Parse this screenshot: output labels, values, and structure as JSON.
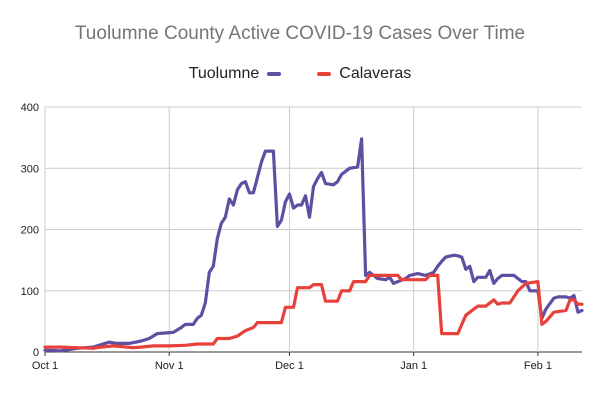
{
  "chart_data": {
    "type": "line",
    "title": "Tuolumne County Active COVID-19 Cases Over Time",
    "xlabel": "",
    "ylabel": "",
    "xlim": [
      "2020-10-01",
      "2021-02-12"
    ],
    "ylim": [
      0,
      400
    ],
    "grid": true,
    "legend_position": "top",
    "y_ticks": [
      0,
      100,
      200,
      300,
      400
    ],
    "x_ticks": [
      {
        "date": "2020-10-01",
        "label": "Oct 1"
      },
      {
        "date": "2020-11-01",
        "label": "Nov 1"
      },
      {
        "date": "2020-12-01",
        "label": "Dec 1"
      },
      {
        "date": "2021-01-01",
        "label": "Jan 1"
      },
      {
        "date": "2021-02-01",
        "label": "Feb 1"
      }
    ],
    "series": [
      {
        "name": "Tuolumne",
        "color": "#5E4FA2",
        "points": [
          [
            "2020-10-01",
            3
          ],
          [
            "2020-10-05",
            2
          ],
          [
            "2020-10-09",
            6
          ],
          [
            "2020-10-13",
            8
          ],
          [
            "2020-10-15",
            12
          ],
          [
            "2020-10-17",
            16
          ],
          [
            "2020-10-19",
            14
          ],
          [
            "2020-10-22",
            14
          ],
          [
            "2020-10-25",
            18
          ],
          [
            "2020-10-27",
            22
          ],
          [
            "2020-10-29",
            30
          ],
          [
            "2020-11-02",
            32
          ],
          [
            "2020-11-04",
            40
          ],
          [
            "2020-11-05",
            45
          ],
          [
            "2020-11-07",
            45
          ],
          [
            "2020-11-08",
            55
          ],
          [
            "2020-11-09",
            60
          ],
          [
            "2020-11-10",
            80
          ],
          [
            "2020-11-11",
            130
          ],
          [
            "2020-11-12",
            140
          ],
          [
            "2020-11-13",
            185
          ],
          [
            "2020-11-14",
            210
          ],
          [
            "2020-11-15",
            220
          ],
          [
            "2020-11-16",
            250
          ],
          [
            "2020-11-17",
            240
          ],
          [
            "2020-11-18",
            265
          ],
          [
            "2020-11-19",
            275
          ],
          [
            "2020-11-20",
            278
          ],
          [
            "2020-11-21",
            260
          ],
          [
            "2020-11-22",
            260
          ],
          [
            "2020-11-24",
            310
          ],
          [
            "2020-11-25",
            328
          ],
          [
            "2020-11-27",
            328
          ],
          [
            "2020-11-28",
            205
          ],
          [
            "2020-11-29",
            215
          ],
          [
            "2020-11-30",
            245
          ],
          [
            "2020-12-01",
            258
          ],
          [
            "2020-12-02",
            235
          ],
          [
            "2020-12-03",
            240
          ],
          [
            "2020-12-04",
            240
          ],
          [
            "2020-12-05",
            255
          ],
          [
            "2020-12-06",
            220
          ],
          [
            "2020-12-07",
            270
          ],
          [
            "2020-12-08",
            283
          ],
          [
            "2020-12-09",
            293
          ],
          [
            "2020-12-10",
            275
          ],
          [
            "2020-12-12",
            273
          ],
          [
            "2020-12-13",
            278
          ],
          [
            "2020-12-14",
            290
          ],
          [
            "2020-12-15",
            295
          ],
          [
            "2020-12-16",
            300
          ],
          [
            "2020-12-18",
            302
          ],
          [
            "2020-12-19",
            348
          ],
          [
            "2020-12-20",
            125
          ],
          [
            "2020-12-21",
            130
          ],
          [
            "2020-12-23",
            120
          ],
          [
            "2020-12-25",
            118
          ],
          [
            "2020-12-26",
            122
          ],
          [
            "2020-12-27",
            112
          ],
          [
            "2020-12-28",
            115
          ],
          [
            "2020-12-30",
            120
          ],
          [
            "2020-12-31",
            125
          ],
          [
            "2021-01-02",
            128
          ],
          [
            "2021-01-04",
            125
          ],
          [
            "2021-01-06",
            130
          ],
          [
            "2021-01-07",
            140
          ],
          [
            "2021-01-08",
            148
          ],
          [
            "2021-01-09",
            155
          ],
          [
            "2021-01-11",
            158
          ],
          [
            "2021-01-12",
            157
          ],
          [
            "2021-01-13",
            155
          ],
          [
            "2021-01-14",
            135
          ],
          [
            "2021-01-15",
            140
          ],
          [
            "2021-01-16",
            115
          ],
          [
            "2021-01-17",
            122
          ],
          [
            "2021-01-19",
            122
          ],
          [
            "2021-01-20",
            133
          ],
          [
            "2021-01-21",
            112
          ],
          [
            "2021-01-22",
            120
          ],
          [
            "2021-01-23",
            125
          ],
          [
            "2021-01-26",
            125
          ],
          [
            "2021-01-27",
            120
          ],
          [
            "2021-01-28",
            115
          ],
          [
            "2021-01-29",
            115
          ],
          [
            "2021-01-30",
            100
          ],
          [
            "2021-02-01",
            100
          ],
          [
            "2021-02-02",
            55
          ],
          [
            "2021-02-03",
            70
          ],
          [
            "2021-02-05",
            88
          ],
          [
            "2021-02-06",
            90
          ],
          [
            "2021-02-08",
            90
          ],
          [
            "2021-02-09",
            88
          ],
          [
            "2021-02-10",
            92
          ],
          [
            "2021-02-11",
            65
          ],
          [
            "2021-02-12",
            68
          ]
        ]
      },
      {
        "name": "Calaveras",
        "color": "#E8413B",
        "points": [
          [
            "2020-10-01",
            8
          ],
          [
            "2020-10-05",
            8
          ],
          [
            "2020-10-09",
            7
          ],
          [
            "2020-10-13",
            6
          ],
          [
            "2020-10-15",
            8
          ],
          [
            "2020-10-18",
            10
          ],
          [
            "2020-10-20",
            9
          ],
          [
            "2020-10-23",
            7
          ],
          [
            "2020-10-25",
            8
          ],
          [
            "2020-10-28",
            10
          ],
          [
            "2020-11-01",
            10
          ],
          [
            "2020-11-05",
            11
          ],
          [
            "2020-11-08",
            13
          ],
          [
            "2020-11-12",
            13
          ],
          [
            "2020-11-13",
            22
          ],
          [
            "2020-11-16",
            22
          ],
          [
            "2020-11-18",
            26
          ],
          [
            "2020-11-20",
            35
          ],
          [
            "2020-11-22",
            40
          ],
          [
            "2020-11-23",
            48
          ],
          [
            "2020-11-29",
            48
          ],
          [
            "2020-11-30",
            73
          ],
          [
            "2020-12-02",
            73
          ],
          [
            "2020-12-03",
            105
          ],
          [
            "2020-12-06",
            105
          ],
          [
            "2020-12-07",
            110
          ],
          [
            "2020-12-09",
            110
          ],
          [
            "2020-12-10",
            83
          ],
          [
            "2020-12-13",
            83
          ],
          [
            "2020-12-14",
            100
          ],
          [
            "2020-12-16",
            100
          ],
          [
            "2020-12-17",
            115
          ],
          [
            "2020-12-20",
            115
          ],
          [
            "2020-12-21",
            125
          ],
          [
            "2020-12-28",
            125
          ],
          [
            "2020-12-29",
            118
          ],
          [
            "2021-01-04",
            118
          ],
          [
            "2021-01-05",
            125
          ],
          [
            "2021-01-07",
            125
          ],
          [
            "2021-01-08",
            30
          ],
          [
            "2021-01-12",
            30
          ],
          [
            "2021-01-13",
            45
          ],
          [
            "2021-01-14",
            60
          ],
          [
            "2021-01-16",
            70
          ],
          [
            "2021-01-17",
            75
          ],
          [
            "2021-01-19",
            75
          ],
          [
            "2021-01-21",
            85
          ],
          [
            "2021-01-22",
            78
          ],
          [
            "2021-01-23",
            80
          ],
          [
            "2021-01-25",
            80
          ],
          [
            "2021-01-27",
            100
          ],
          [
            "2021-01-29",
            112
          ],
          [
            "2021-02-01",
            115
          ],
          [
            "2021-02-02",
            45
          ],
          [
            "2021-02-03",
            50
          ],
          [
            "2021-02-05",
            65
          ],
          [
            "2021-02-08",
            68
          ],
          [
            "2021-02-09",
            85
          ],
          [
            "2021-02-10",
            85
          ],
          [
            "2021-02-11",
            78
          ],
          [
            "2021-02-12",
            78
          ]
        ]
      }
    ]
  }
}
